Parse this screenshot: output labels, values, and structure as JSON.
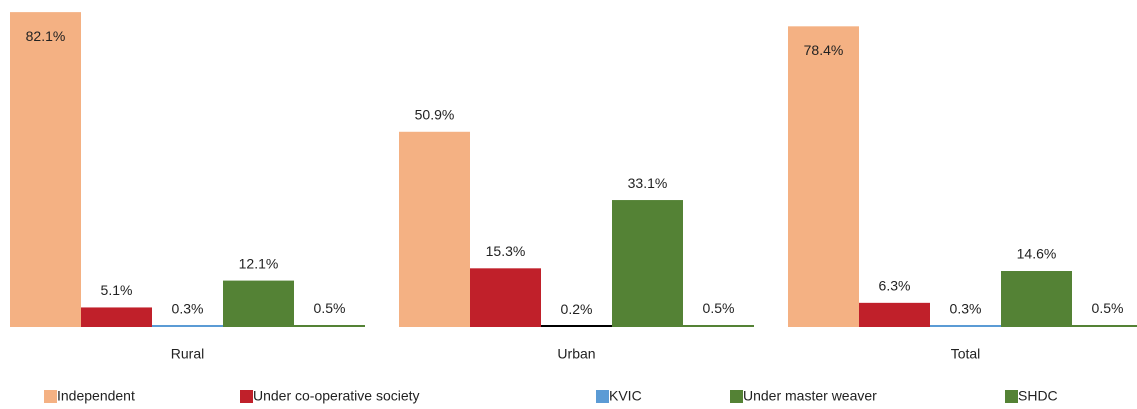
{
  "chart_data": {
    "type": "bar",
    "categories": [
      "Rural",
      "Urban",
      "Total"
    ],
    "series": [
      {
        "name": "Independent",
        "color": "#f4b183",
        "values": [
          82.1,
          50.9,
          78.4
        ],
        "value_labels": [
          "82.1%",
          "50.9%",
          "78.4%"
        ]
      },
      {
        "name": "Under co-operative society",
        "color": "#c0202a",
        "values": [
          5.1,
          15.3,
          6.3
        ],
        "value_labels": [
          "5.1%",
          "15.3%",
          "6.3%"
        ]
      },
      {
        "name": "KVIC",
        "color": "#5b9bd5",
        "colors": [
          "#5b9bd5",
          "#000000",
          "#5b9bd5"
        ],
        "values": [
          0.3,
          0.2,
          0.3
        ],
        "value_labels": [
          "0.3%",
          "0.2%",
          "0.3%"
        ]
      },
      {
        "name": "Under master weaver",
        "color": "#548235",
        "values": [
          12.1,
          33.1,
          14.6
        ],
        "value_labels": [
          "12.1%",
          "33.1%",
          "14.6%"
        ]
      },
      {
        "name": "SHDC",
        "color": "#548235",
        "values": [
          0.5,
          0.5,
          0.5
        ],
        "value_labels": [
          "0.5%",
          "0.5%",
          "0.5%"
        ]
      }
    ],
    "ylim": [
      0,
      85
    ],
    "legend": "bottom"
  }
}
